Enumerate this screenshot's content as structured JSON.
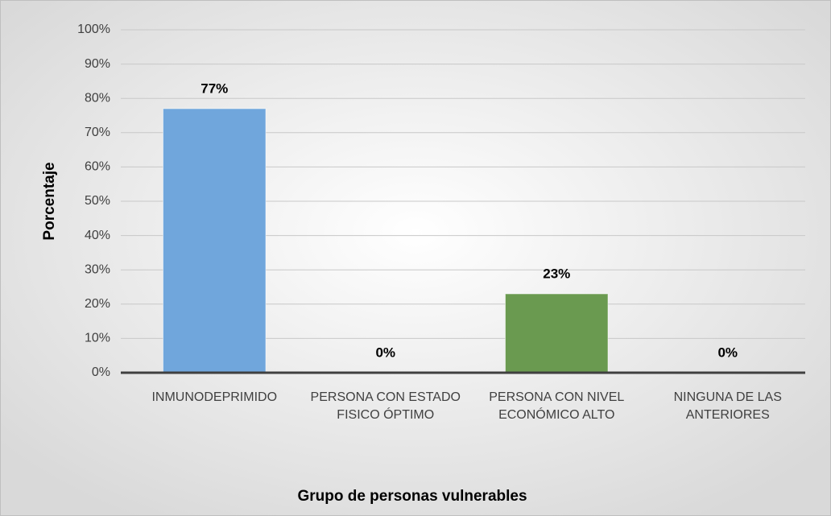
{
  "chart_data": {
    "type": "bar",
    "x_label": "Grupo de personas vulnerables",
    "y_label": "Porcentaje",
    "categories": [
      "INMUNODEPRIMIDO",
      "PERSONA CON ESTADO FISICO ÓPTIMO",
      "PERSONA CON NIVEL ECONÓMICO ALTO",
      "NINGUNA DE LAS ANTERIORES"
    ],
    "values": [
      77,
      0,
      23,
      0
    ],
    "value_labels": [
      "77%",
      "0%",
      "23%",
      "0%"
    ],
    "colors": [
      "#70a6dc",
      "#6a9a50",
      "#6a9a50",
      "#70a6dc"
    ],
    "ylim": [
      0,
      100
    ],
    "yticks": [
      {
        "value": 0,
        "label": "0%"
      },
      {
        "value": 10,
        "label": "10%"
      },
      {
        "value": 20,
        "label": "20%"
      },
      {
        "value": 30,
        "label": "30%"
      },
      {
        "value": 40,
        "label": "40%"
      },
      {
        "value": 50,
        "label": "50%"
      },
      {
        "value": 60,
        "label": "60%"
      },
      {
        "value": 70,
        "label": "70%"
      },
      {
        "value": 80,
        "label": "80%"
      },
      {
        "value": 90,
        "label": "90%"
      },
      {
        "value": 100,
        "label": "100%"
      }
    ],
    "grid": true
  }
}
